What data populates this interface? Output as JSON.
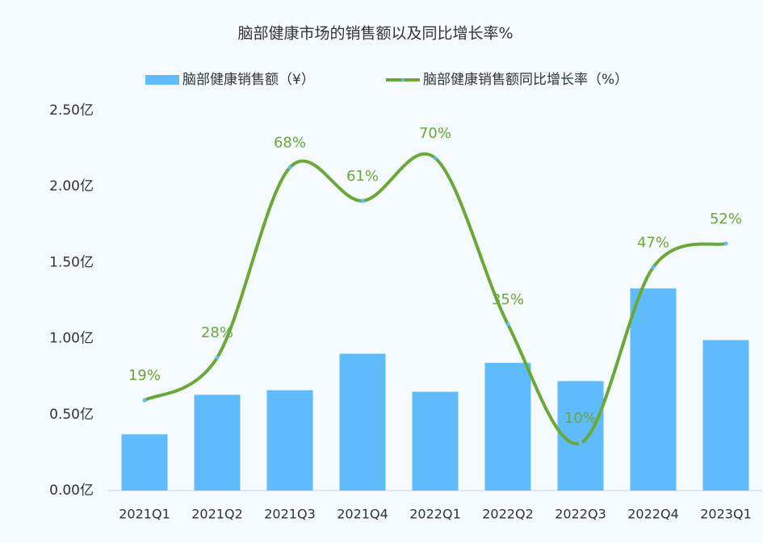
{
  "chart_data": {
    "type": "bar-line",
    "title": "脑部健康市场的销售额以及同比增长率%",
    "categories": [
      "2021Q1",
      "2021Q2",
      "2021Q3",
      "2021Q4",
      "2022Q1",
      "2022Q2",
      "2022Q3",
      "2022Q4",
      "2023Q1"
    ],
    "series": [
      {
        "name": "脑部健康销售额（¥）",
        "type": "bar",
        "color": "#5fbbfb",
        "values": [
          0.37,
          0.63,
          0.66,
          0.9,
          0.65,
          0.84,
          0.72,
          1.33,
          0.99
        ]
      },
      {
        "name": "脑部健康销售额同比增长率（%）",
        "type": "line",
        "axis": "y2",
        "color": "#6aa837",
        "values": [
          19,
          28,
          68,
          61,
          70,
          35,
          10,
          47,
          52
        ],
        "value_labels": [
          "19%",
          "28%",
          "68%",
          "61%",
          "70%",
          "35%",
          "10%",
          "47%",
          "52%"
        ]
      }
    ],
    "ylim": [
      0,
      2.5
    ],
    "yticks": [
      {
        "value": 0,
        "label": "0.00亿"
      },
      {
        "value": 0.5,
        "label": "0.50亿"
      },
      {
        "value": 1,
        "label": "1.00亿"
      },
      {
        "value": 1.5,
        "label": "1.50亿"
      },
      {
        "value": 2,
        "label": "2.00亿"
      },
      {
        "value": 2.5,
        "label": "2.50亿"
      }
    ],
    "y2lim": [
      0,
      80
    ],
    "grid": false,
    "legend": "top"
  }
}
